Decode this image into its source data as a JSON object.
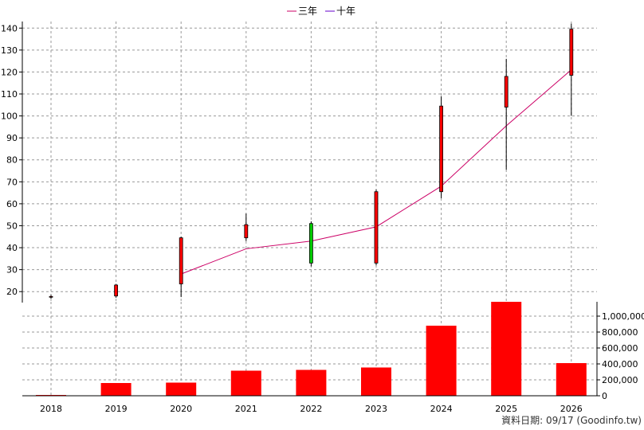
{
  "legend": [
    {
      "label": "三年",
      "color": "#cc0066"
    },
    {
      "label": "十年",
      "color": "#6600cc"
    }
  ],
  "source_note": "資料日期: 09/17  (Goodinfo.tw)",
  "chart_data": [
    {
      "type": "candlestick",
      "categories": [
        "2018",
        "2019",
        "2020",
        "2021",
        "2022",
        "2023",
        "2024",
        "2025",
        "2026"
      ],
      "ylim": [
        15,
        143
      ],
      "yticks": [
        20,
        30,
        40,
        50,
        60,
        70,
        80,
        90,
        100,
        110,
        120,
        130,
        140
      ],
      "grid": true,
      "candles": [
        {
          "open": 17.5,
          "close": 17.8,
          "high": 18.5,
          "low": 16.8
        },
        {
          "open": 18.0,
          "close": 23.0,
          "high": 23.5,
          "low": 17.2
        },
        {
          "open": 23.5,
          "close": 44.5,
          "high": 45.0,
          "low": 17.5
        },
        {
          "open": 44.5,
          "close": 50.5,
          "high": 55.5,
          "low": 43.0
        },
        {
          "open": 51.0,
          "close": 33.0,
          "high": 52.0,
          "low": 31.5
        },
        {
          "open": 33.0,
          "close": 65.5,
          "high": 66.5,
          "low": 32.0
        },
        {
          "open": 65.5,
          "close": 104.5,
          "high": 109.0,
          "low": 62.5
        },
        {
          "open": 104.0,
          "close": 118.0,
          "high": 126.0,
          "low": 75.5
        },
        {
          "open": 118.5,
          "close": 139.5,
          "high": 142.0,
          "low": 100.0
        }
      ],
      "series": [
        {
          "name": "三年",
          "values": [
            null,
            null,
            28.0,
            39.5,
            43.0,
            49.5,
            68.0,
            95.5,
            121.0
          ]
        }
      ]
    },
    {
      "type": "bar",
      "categories": [
        "2018",
        "2019",
        "2020",
        "2021",
        "2022",
        "2023",
        "2024",
        "2025",
        "2026"
      ],
      "ylim": [
        0,
        1180000
      ],
      "yticks": [
        0,
        200000,
        400000,
        600000,
        800000,
        1000000
      ],
      "ytick_labels": [
        "0",
        "200,000",
        "400,000",
        "600,000",
        "800,000",
        "1,000,000"
      ],
      "values": [
        5000,
        160000,
        165000,
        315000,
        325000,
        355000,
        880000,
        1180000,
        410000
      ],
      "color": "#ff0000"
    }
  ]
}
